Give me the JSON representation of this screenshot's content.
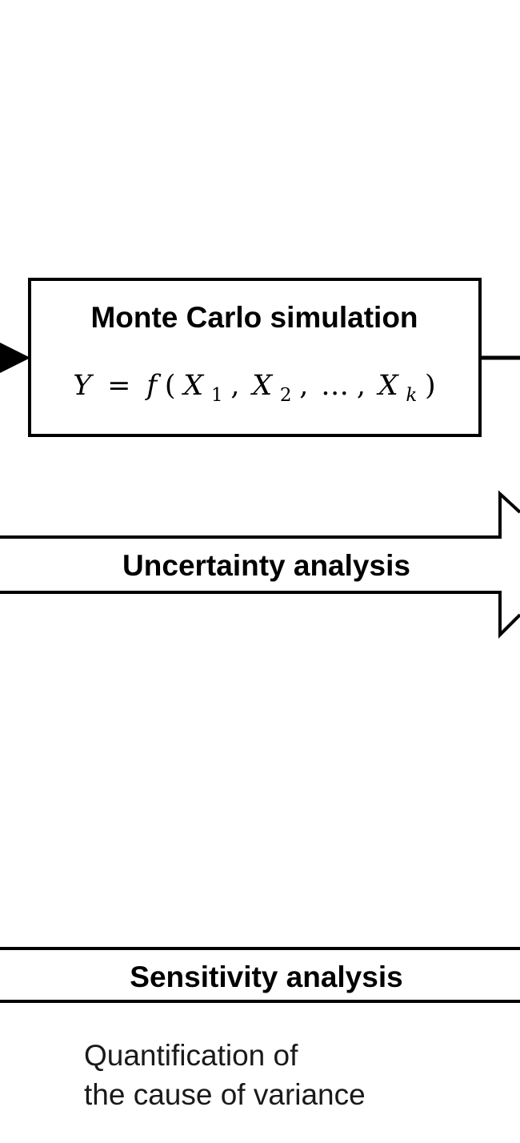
{
  "diagram": {
    "simulation_box": {
      "title": "Monte Carlo simulation",
      "formula": {
        "output": "Y",
        "equals": "=",
        "function": "f",
        "open": "(",
        "inputs": [
          {
            "symbol": "X",
            "subscript": "1"
          },
          {
            "symbol": "X",
            "subscript": "2"
          }
        ],
        "ellipsis": "…",
        "last_input": {
          "symbol": "X",
          "subscript": "k"
        },
        "close": ")"
      }
    },
    "uncertainty_arrow": {
      "label": "Uncertainty analysis"
    },
    "sensitivity_band": {
      "label": "Sensitivity analysis"
    },
    "description": {
      "line1": "Quantification of",
      "line2": "the cause of variance"
    }
  },
  "colors": {
    "stroke": "#000000",
    "background": "#ffffff",
    "text": "#000000"
  }
}
